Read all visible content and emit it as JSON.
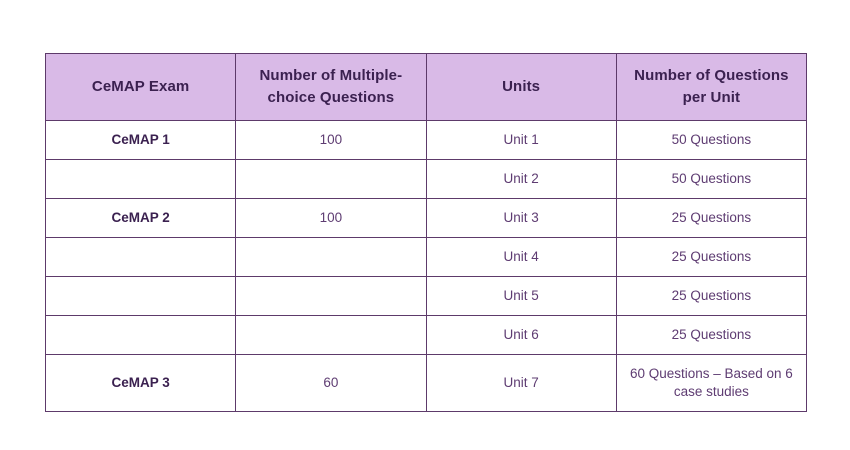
{
  "colors": {
    "header_bg": "#d9bae7",
    "border": "#5d3a6a",
    "header_text": "#3b2150",
    "body_text": "#5e3c72",
    "page_bg": "#ffffff"
  },
  "table": {
    "headers": {
      "exam": "CeMAP Exam",
      "mcq": "Number of Multiple-\nchoice Questions",
      "units": "Units",
      "per_unit": "Number of Questions\nper Unit"
    },
    "rows": [
      {
        "exam": "CeMAP 1",
        "mcq": "100",
        "unit": "Unit 1",
        "per_unit": "50 Questions"
      },
      {
        "exam": "",
        "mcq": "",
        "unit": "Unit 2",
        "per_unit": "50 Questions"
      },
      {
        "exam": "CeMAP 2",
        "mcq": "100",
        "unit": "Unit 3",
        "per_unit": "25 Questions"
      },
      {
        "exam": "",
        "mcq": "",
        "unit": "Unit 4",
        "per_unit": "25 Questions"
      },
      {
        "exam": "",
        "mcq": "",
        "unit": "Unit 5",
        "per_unit": "25 Questions"
      },
      {
        "exam": "",
        "mcq": "",
        "unit": "Unit 6",
        "per_unit": "25 Questions"
      },
      {
        "exam": "CeMAP 3",
        "mcq": "60",
        "unit": "Unit 7",
        "per_unit": "60 Questions – Based on 6\ncase studies"
      }
    ]
  },
  "chart_data": {
    "type": "table",
    "columns": [
      "CeMAP Exam",
      "Number of Multiple-choice Questions",
      "Units",
      "Number of Questions per Unit"
    ],
    "rows": [
      [
        "CeMAP 1",
        "100",
        "Unit 1",
        "50 Questions"
      ],
      [
        "",
        "",
        "Unit 2",
        "50 Questions"
      ],
      [
        "CeMAP 2",
        "100",
        "Unit 3",
        "25 Questions"
      ],
      [
        "",
        "",
        "Unit 4",
        "25 Questions"
      ],
      [
        "",
        "",
        "Unit 5",
        "25 Questions"
      ],
      [
        "",
        "",
        "Unit 6",
        "25 Questions"
      ],
      [
        "CeMAP 3",
        "60",
        "Unit 7",
        "60 Questions – Based on 6 case studies"
      ]
    ]
  }
}
